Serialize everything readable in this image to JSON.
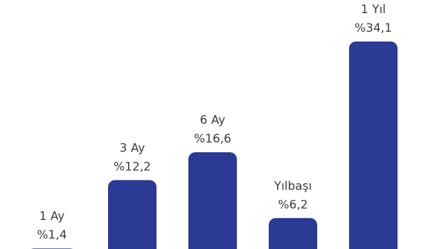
{
  "chart_data": {
    "type": "bar",
    "title": "",
    "xlabel": "",
    "ylabel": "",
    "categories": [
      "1 Ay",
      "3 Ay",
      "6 Ay",
      "Yılbaşı",
      "1 Yıl"
    ],
    "values": [
      1.4,
      12.2,
      16.6,
      6.2,
      34.1
    ],
    "value_labels": [
      "%1,4",
      "%12,2",
      "%16,6",
      "%6,2",
      "%34,1"
    ],
    "ylim": [
      0,
      34.1
    ],
    "grid": false,
    "legend": "none",
    "colors": {
      "bar": "#2b3a94",
      "text": "#3d3d3d",
      "background": "#ffffff"
    }
  }
}
